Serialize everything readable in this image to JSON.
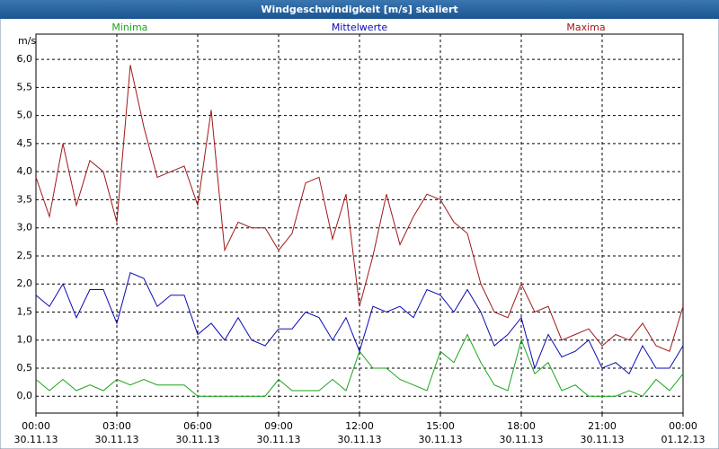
{
  "chart_data": {
    "type": "line",
    "title": "Windgeschwindigkeit [m/s] skaliert",
    "y_label": "m/s",
    "x": [
      0,
      0.5,
      1,
      1.5,
      2,
      2.5,
      3,
      3.5,
      4,
      4.5,
      5,
      5.5,
      6,
      6.5,
      7,
      7.5,
      8,
      8.5,
      9,
      9.5,
      10,
      10.5,
      11,
      11.5,
      12,
      12.5,
      13,
      13.5,
      14,
      14.5,
      15,
      15.5,
      16,
      16.5,
      17,
      17.5,
      18,
      18.5,
      19,
      19.5,
      20,
      20.5,
      21,
      21.5,
      22,
      22.5,
      23,
      23.5,
      24
    ],
    "series": [
      {
        "name": "Minima",
        "color": "#1aa51a",
        "values": [
          0.3,
          0.1,
          0.3,
          0.1,
          0.2,
          0.1,
          0.3,
          0.2,
          0.3,
          0.2,
          0.2,
          0.2,
          0.0,
          0.0,
          0.0,
          0.0,
          0.0,
          0.0,
          0.3,
          0.1,
          0.1,
          0.1,
          0.3,
          0.1,
          0.8,
          0.5,
          0.5,
          0.3,
          0.2,
          0.1,
          0.8,
          0.6,
          1.1,
          0.6,
          0.2,
          0.1,
          1.0,
          0.4,
          0.6,
          0.1,
          0.2,
          0.0,
          0.0,
          0.0,
          0.1,
          0.0,
          0.3,
          0.1,
          0.4
        ]
      },
      {
        "name": "Mittelwerte",
        "color": "#0a0ab4",
        "values": [
          1.8,
          1.6,
          2.0,
          1.4,
          1.9,
          1.9,
          1.3,
          2.2,
          2.1,
          1.6,
          1.8,
          1.8,
          1.1,
          1.3,
          1.0,
          1.4,
          1.0,
          0.9,
          1.2,
          1.2,
          1.5,
          1.4,
          1.0,
          1.4,
          0.8,
          1.6,
          1.5,
          1.6,
          1.4,
          1.9,
          1.8,
          1.5,
          1.9,
          1.5,
          0.9,
          1.1,
          1.4,
          0.5,
          1.1,
          0.7,
          0.8,
          1.0,
          0.5,
          0.6,
          0.4,
          0.9,
          0.5,
          0.5,
          0.9
        ]
      },
      {
        "name": "Maxima",
        "color": "#a01818",
        "values": [
          3.9,
          3.2,
          4.5,
          3.4,
          4.2,
          4.0,
          3.1,
          5.9,
          4.8,
          3.9,
          4.0,
          4.1,
          3.4,
          5.1,
          2.6,
          3.1,
          3.0,
          3.0,
          2.6,
          2.9,
          3.8,
          3.9,
          2.8,
          3.6,
          1.6,
          2.5,
          3.6,
          2.7,
          3.2,
          3.6,
          3.5,
          3.1,
          2.9,
          2.0,
          1.5,
          1.4,
          2.0,
          1.5,
          1.6,
          1.0,
          1.1,
          1.2,
          0.9,
          1.1,
          1.0,
          1.3,
          0.9,
          0.8,
          1.6
        ]
      }
    ],
    "xlim": [
      0,
      24
    ],
    "xticks": [
      {
        "value": 0,
        "label": "00:00"
      },
      {
        "value": 3,
        "label": "03:00"
      },
      {
        "value": 6,
        "label": "06:00"
      },
      {
        "value": 9,
        "label": "09:00"
      },
      {
        "value": 12,
        "label": "12:00"
      },
      {
        "value": 15,
        "label": "15:00"
      },
      {
        "value": 18,
        "label": "18:00"
      },
      {
        "value": 21,
        "label": "21:00"
      },
      {
        "value": 24,
        "label": "00:00"
      }
    ],
    "xtick_dates": [
      "30.11.13",
      "30.11.13",
      "30.11.13",
      "30.11.13",
      "30.11.13",
      "30.11.13",
      "30.11.13",
      "30.11.13",
      "01.12.13"
    ],
    "ylim": [
      -0.3,
      6.45
    ],
    "yticks": [
      {
        "value": 0,
        "label": "0,0"
      },
      {
        "value": 0.5,
        "label": "0,5"
      },
      {
        "value": 1,
        "label": "1,0"
      },
      {
        "value": 1.5,
        "label": "1,5"
      },
      {
        "value": 2,
        "label": "2,0"
      },
      {
        "value": 2.5,
        "label": "2,5"
      },
      {
        "value": 3,
        "label": "3,0"
      },
      {
        "value": 3.5,
        "label": "3,5"
      },
      {
        "value": 4,
        "label": "4,0"
      },
      {
        "value": 4.5,
        "label": "4,5"
      },
      {
        "value": 5,
        "label": "5,0"
      },
      {
        "value": 5.5,
        "label": "5,5"
      },
      {
        "value": 6,
        "label": "6,0"
      }
    ],
    "grid": true
  }
}
